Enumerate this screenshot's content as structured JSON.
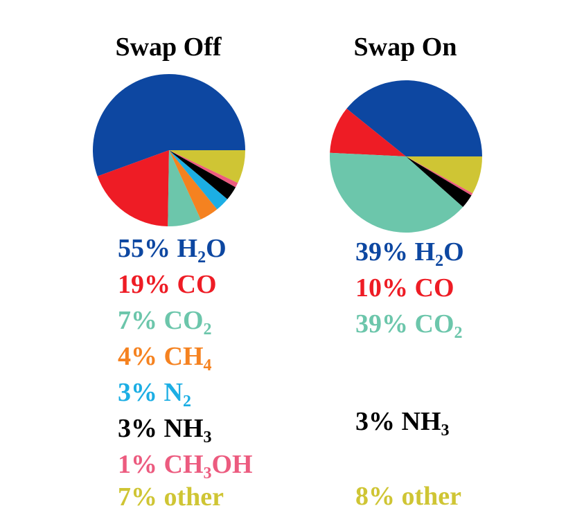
{
  "chart_data": [
    {
      "type": "pie",
      "title": "Swap Off",
      "colors": {
        "H2O": "#0d47a1",
        "CO": "#ee1c25",
        "CO2": "#6cc6ab",
        "CH4": "#f58220",
        "N2": "#1caee4",
        "NH3": "#000000",
        "CH3OH": "#ec5b7f",
        "other": "#cfc534"
      },
      "slices": [
        {
          "key": "H2O",
          "pct": "55%",
          "label": "H",
          "sub": "2",
          "tail": "O",
          "value": 55
        },
        {
          "key": "CO",
          "pct": "19%",
          "label": "CO",
          "sub": "",
          "tail": "",
          "value": 19
        },
        {
          "key": "CO2",
          "pct": "7%",
          "label": "CO",
          "sub": "2",
          "tail": "",
          "value": 7
        },
        {
          "key": "CH4",
          "pct": "4%",
          "label": "CH",
          "sub": "4",
          "tail": "",
          "value": 4
        },
        {
          "key": "N2",
          "pct": "3%",
          "label": "N",
          "sub": "2",
          "tail": "",
          "value": 3
        },
        {
          "key": "NH3",
          "pct": "3%",
          "label": "NH",
          "sub": "3",
          "tail": "",
          "value": 3
        },
        {
          "key": "CH3OH",
          "pct": "1%",
          "label": "CH",
          "sub": "3",
          "tail": "OH",
          "value": 1
        },
        {
          "key": "other",
          "pct": "7%",
          "label": "other",
          "sub": "",
          "tail": "",
          "value": 7
        }
      ]
    },
    {
      "type": "pie",
      "title": "Swap On",
      "colors": {
        "H2O": "#0d47a1",
        "CO": "#ee1c25",
        "CO2": "#6cc6ab",
        "NH3": "#000000",
        "CH3OH": "#ec5b7f",
        "other": "#cfc534"
      },
      "slices": [
        {
          "key": "H2O",
          "pct": "39%",
          "label": "H",
          "sub": "2",
          "tail": "O",
          "value": 39
        },
        {
          "key": "CO",
          "pct": "10%",
          "label": "CO",
          "sub": "",
          "tail": "",
          "value": 10
        },
        {
          "key": "CO2",
          "pct": "39%",
          "label": "CO",
          "sub": "2",
          "tail": "",
          "value": 39
        },
        {
          "key": "NH3",
          "pct": "3%",
          "label": "NH",
          "sub": "3",
          "tail": "",
          "value": 3
        },
        {
          "key": "CH3OH",
          "pct": "",
          "label": "",
          "sub": "",
          "tail": "",
          "value": 0.5
        },
        {
          "key": "other",
          "pct": "8%",
          "label": "other",
          "sub": "",
          "tail": "",
          "value": 8
        }
      ]
    }
  ]
}
